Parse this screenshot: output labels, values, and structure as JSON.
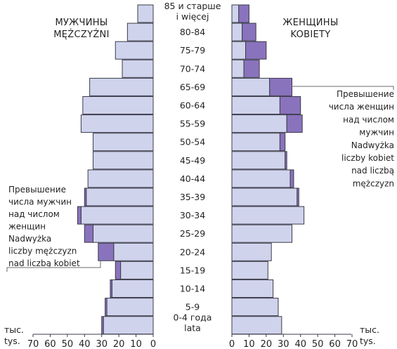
{
  "chart_data": {
    "type": "bar",
    "age_groups": [
      [
        "85 и старше",
        "i więcej"
      ],
      [
        "80-84"
      ],
      [
        "75-79"
      ],
      [
        "70-74"
      ],
      [
        "65-69"
      ],
      [
        "60-64"
      ],
      [
        "55-59"
      ],
      [
        "50-54"
      ],
      [
        "45-49"
      ],
      [
        "40-44"
      ],
      [
        "35-39"
      ],
      [
        "30-34"
      ],
      [
        "25-29"
      ],
      [
        "20-24"
      ],
      [
        "15-19"
      ],
      [
        "10-14"
      ],
      [
        "5-9"
      ],
      [
        "0-4 года",
        "lata"
      ]
    ],
    "series": [
      {
        "name": "МУЖЧИНЫ / MĘŻCZYŹNI",
        "values": [
          9,
          15,
          22,
          18,
          37,
          41,
          42,
          35,
          35,
          38,
          40,
          44,
          40,
          32,
          22,
          25,
          28,
          30
        ]
      },
      {
        "name": "ЖЕНЩИНЫ / KOBIETY",
        "values": [
          10,
          14,
          20,
          16,
          35,
          40,
          41,
          31,
          32,
          36,
          39,
          42,
          35,
          23,
          21,
          24,
          27,
          29
        ]
      }
    ],
    "excess": {
      "male_over_female": [
        0,
        0,
        0,
        0,
        0,
        0,
        0,
        0,
        0,
        0,
        1,
        2,
        5,
        9,
        3,
        1,
        1,
        1
      ],
      "female_over_male": [
        6,
        8,
        12,
        9,
        13,
        12,
        9,
        3,
        1,
        2,
        1,
        0,
        0,
        0,
        0,
        0,
        0,
        0
      ]
    },
    "headings": {
      "male": [
        "МУЖЧИНЫ",
        "MĘŻCZYŹNI"
      ],
      "female": [
        "ЖЕНЩИНЫ",
        "KOBIETY"
      ]
    },
    "annotations": {
      "female_excess": [
        "Превышение",
        "числа женщин",
        "над числом",
        "мужчин",
        "Nadwyżka",
        "liczby kobiet",
        "nad liczbą",
        "mężczyzn"
      ],
      "male_excess": [
        "Превышение",
        "числа мужчин",
        "над числом",
        "женщин",
        "Nadwyżka",
        "liczby mężczyzn",
        "nad liczbą kobiet"
      ]
    },
    "unit_label": [
      "тыс.",
      "tys."
    ],
    "x_ticks_left": [
      70,
      60,
      50,
      40,
      30,
      20,
      10,
      0
    ],
    "x_ticks_right": [
      0,
      10,
      20,
      30,
      40,
      50,
      60,
      70
    ],
    "xlim": [
      0,
      70
    ],
    "colors": {
      "base": "#cfd3ec",
      "excess": "#8a73bd",
      "outline": "#3b3b4a"
    }
  }
}
